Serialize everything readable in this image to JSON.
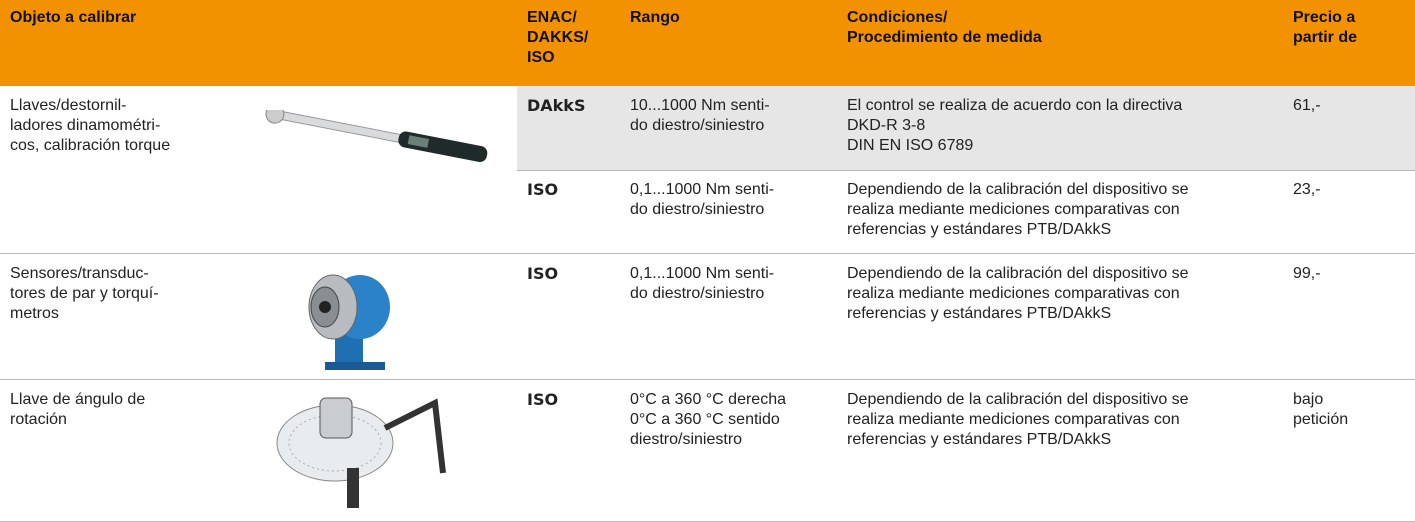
{
  "table": {
    "header": [
      "Objeto a calibrar",
      "ENAC/\nDAKKS/\nISO",
      "Rango",
      "Condiciones/\nProcedimiento de medida",
      "Precio a\npartir de"
    ],
    "groups": [
      {
        "object": "Llaves/destornil-\nladores dinamométri-\ncos, calibración torque",
        "entries": [
          {
            "standard": "DAkkS",
            "range": "10...1000 Nm senti-\ndo diestro/siniestro",
            "conditions": "El control se realiza de acuerdo con la directiva\nDKD-R 3-8\nDIN EN ISO 6789",
            "price": "61,-"
          },
          {
            "standard": "ISO",
            "range": "0,1...1000 Nm senti-\ndo diestro/siniestro",
            "conditions": "Dependiendo de la calibración del dispositivo se\nrealiza mediante mediciones comparativas con\nreferencias y estándares PTB/DAkkS",
            "price": "23,-"
          }
        ]
      },
      {
        "object": "Sensores/transduc-\ntores de par y torquí-\nmetros",
        "entries": [
          {
            "standard": "ISO",
            "range": "0,1...1000 Nm senti-\ndo diestro/siniestro",
            "conditions": "Dependiendo de la calibración del dispositivo se\nrealiza mediante mediciones comparativas con\nreferencias y estándares PTB/DAkkS",
            "price": "99,-"
          }
        ]
      },
      {
        "object": "Llave de ángulo de\nrotación",
        "entries": [
          {
            "standard": "ISO",
            "range": "0°C a 360 °C derecha\n0°C a 360 °C sentido\ndiestro/siniestro",
            "conditions": "Dependiendo de la calibración del dispositivo se\nrealiza mediante mediciones comparativas con\nreferencias y estándares PTB/DAkkS",
            "price": "bajo\npetición"
          }
        ]
      }
    ]
  }
}
